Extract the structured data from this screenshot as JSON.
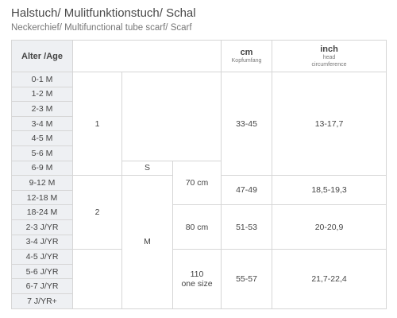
{
  "header": {
    "title": "Halstuch/ Mulitfunktionstuch/ Schal",
    "subtitle": "Neckerchief/ Multifunctional tube scarf/ Scarf"
  },
  "table": {
    "headers": [
      {
        "label": "Alter /Age"
      },
      {
        "label": "cm",
        "sub": "Kopfumfang"
      },
      {
        "label": "inch",
        "sub": "head\ncircumference"
      }
    ],
    "ages": [
      "0-1 M",
      "1-2 M",
      "2-3 M",
      "3-4 M",
      "4-5 M",
      "5-6 M",
      "6-9 M",
      "9-12 M",
      "12-18 M",
      "18-24 M",
      "2-3 J/YR",
      "3-4 J/YR",
      "4-5 J/YR",
      "5-6 J/YR",
      "6-7 J/YR",
      "7 J/YR+"
    ],
    "size_groups": [
      "1",
      "2"
    ],
    "sizes": [
      "S",
      "M"
    ],
    "lengths": [
      "70 cm",
      "80 cm",
      "110\none size"
    ],
    "cm": [
      "33-45",
      "47-49",
      "51-53",
      "55-57"
    ],
    "inch": [
      "13-17,7",
      "18,5-19,3",
      "20-20,9",
      "21,7-22,4"
    ]
  }
}
